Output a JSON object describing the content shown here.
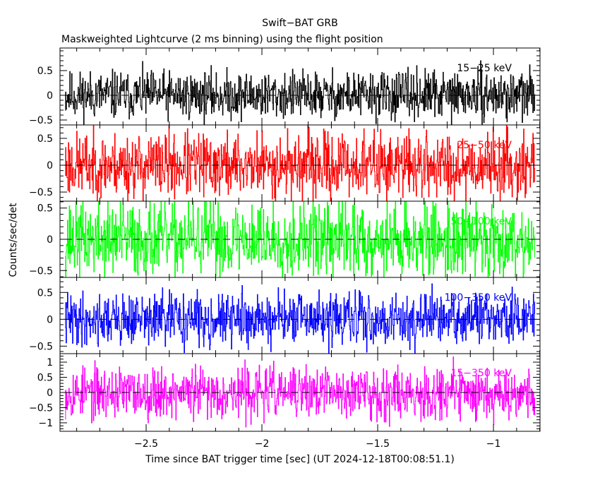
{
  "chart_data": {
    "type": "line",
    "title": "Swift−BAT GRB",
    "subtitle": "Maskweighted Lightcurve (2 ms binning) using the flight position",
    "xlabel": "Time since BAT trigger time [sec] (UT 2024-12-18T00:08:51.1)",
    "ylabel": "Counts/sec/det",
    "xlim": [
      -2.872,
      -0.799
    ],
    "data_x_range": [
      -2.85,
      -0.82
    ],
    "bin_width": 0.002,
    "x_ticks": [
      -2.5,
      -2,
      -1.5,
      -1
    ],
    "x_tick_labels": [
      "−2.5",
      "−2",
      "−1.5",
      "−1"
    ],
    "grid": false,
    "note_values": "noise-like lightcurves, approximately zero-mean; std estimated per band",
    "series": [
      {
        "name": "15−25 keV",
        "color": "#000000",
        "ylim": [
          -0.6,
          0.957
        ],
        "std": 0.24,
        "seed": 11,
        "y_ticks": [
          -0.5,
          0,
          0.5
        ],
        "y_tick_labels": [
          "−0.5",
          "0",
          "0.5"
        ]
      },
      {
        "name": "25−50 keV",
        "color": "#ff0000",
        "ylim": [
          -0.67,
          0.75
        ],
        "std": 0.3,
        "seed": 23,
        "y_ticks": [
          -0.5,
          0,
          0.5
        ],
        "y_tick_labels": [
          "−0.5",
          "0",
          "0.5"
        ]
      },
      {
        "name": "50−100 keV",
        "color": "#00ff00",
        "ylim": [
          -0.61,
          0.61
        ],
        "std": 0.3,
        "seed": 37,
        "y_ticks": [
          -0.5,
          0,
          0.5
        ],
        "y_tick_labels": [
          "−0.5",
          "0",
          "0.5"
        ]
      },
      {
        "name": "100−350 keV",
        "color": "#0000ff",
        "ylim": [
          -0.64,
          0.78
        ],
        "std": 0.24,
        "seed": 41,
        "y_ticks": [
          -0.5,
          0,
          0.5
        ],
        "y_tick_labels": [
          "−0.5",
          "0",
          "0.5"
        ]
      },
      {
        "name": "15−350 keV",
        "color": "#ff00ff",
        "ylim": [
          -1.28,
          1.28
        ],
        "std": 0.42,
        "seed": 53,
        "y_ticks": [
          -1,
          -0.5,
          0,
          0.5,
          1
        ],
        "y_tick_labels": [
          "−1",
          "−0.5",
          "0",
          "0.5",
          "1"
        ]
      }
    ]
  }
}
